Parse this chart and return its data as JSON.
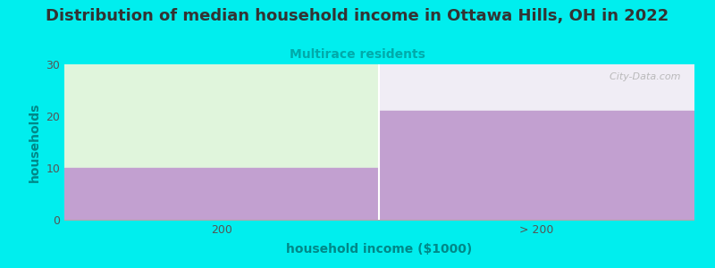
{
  "title": "Distribution of median household income in Ottawa Hills, OH in 2022",
  "subtitle": "Multirace residents",
  "xlabel": "household income ($1000)",
  "ylabel": "households",
  "categories": [
    "200",
    "> 200"
  ],
  "values": [
    10,
    21
  ],
  "ylim": [
    0,
    30
  ],
  "yticks": [
    0,
    10,
    20,
    30
  ],
  "bar_color": "#c2a0d0",
  "top_fill_color_left": "#e0f5dc",
  "top_fill_color_right": "#f0edf5",
  "plot_bg_color": "#f8f8f8",
  "background_color": "#00eeee",
  "title_fontsize": 13,
  "title_color": "#333333",
  "subtitle_color": "#00aaaa",
  "subtitle_fontsize": 10,
  "ylabel_color": "#008888",
  "xlabel_color": "#008888",
  "watermark_text": "  City-Data.com",
  "watermark_color": "#b0b0b0",
  "grid_color": "#e0e0e0"
}
